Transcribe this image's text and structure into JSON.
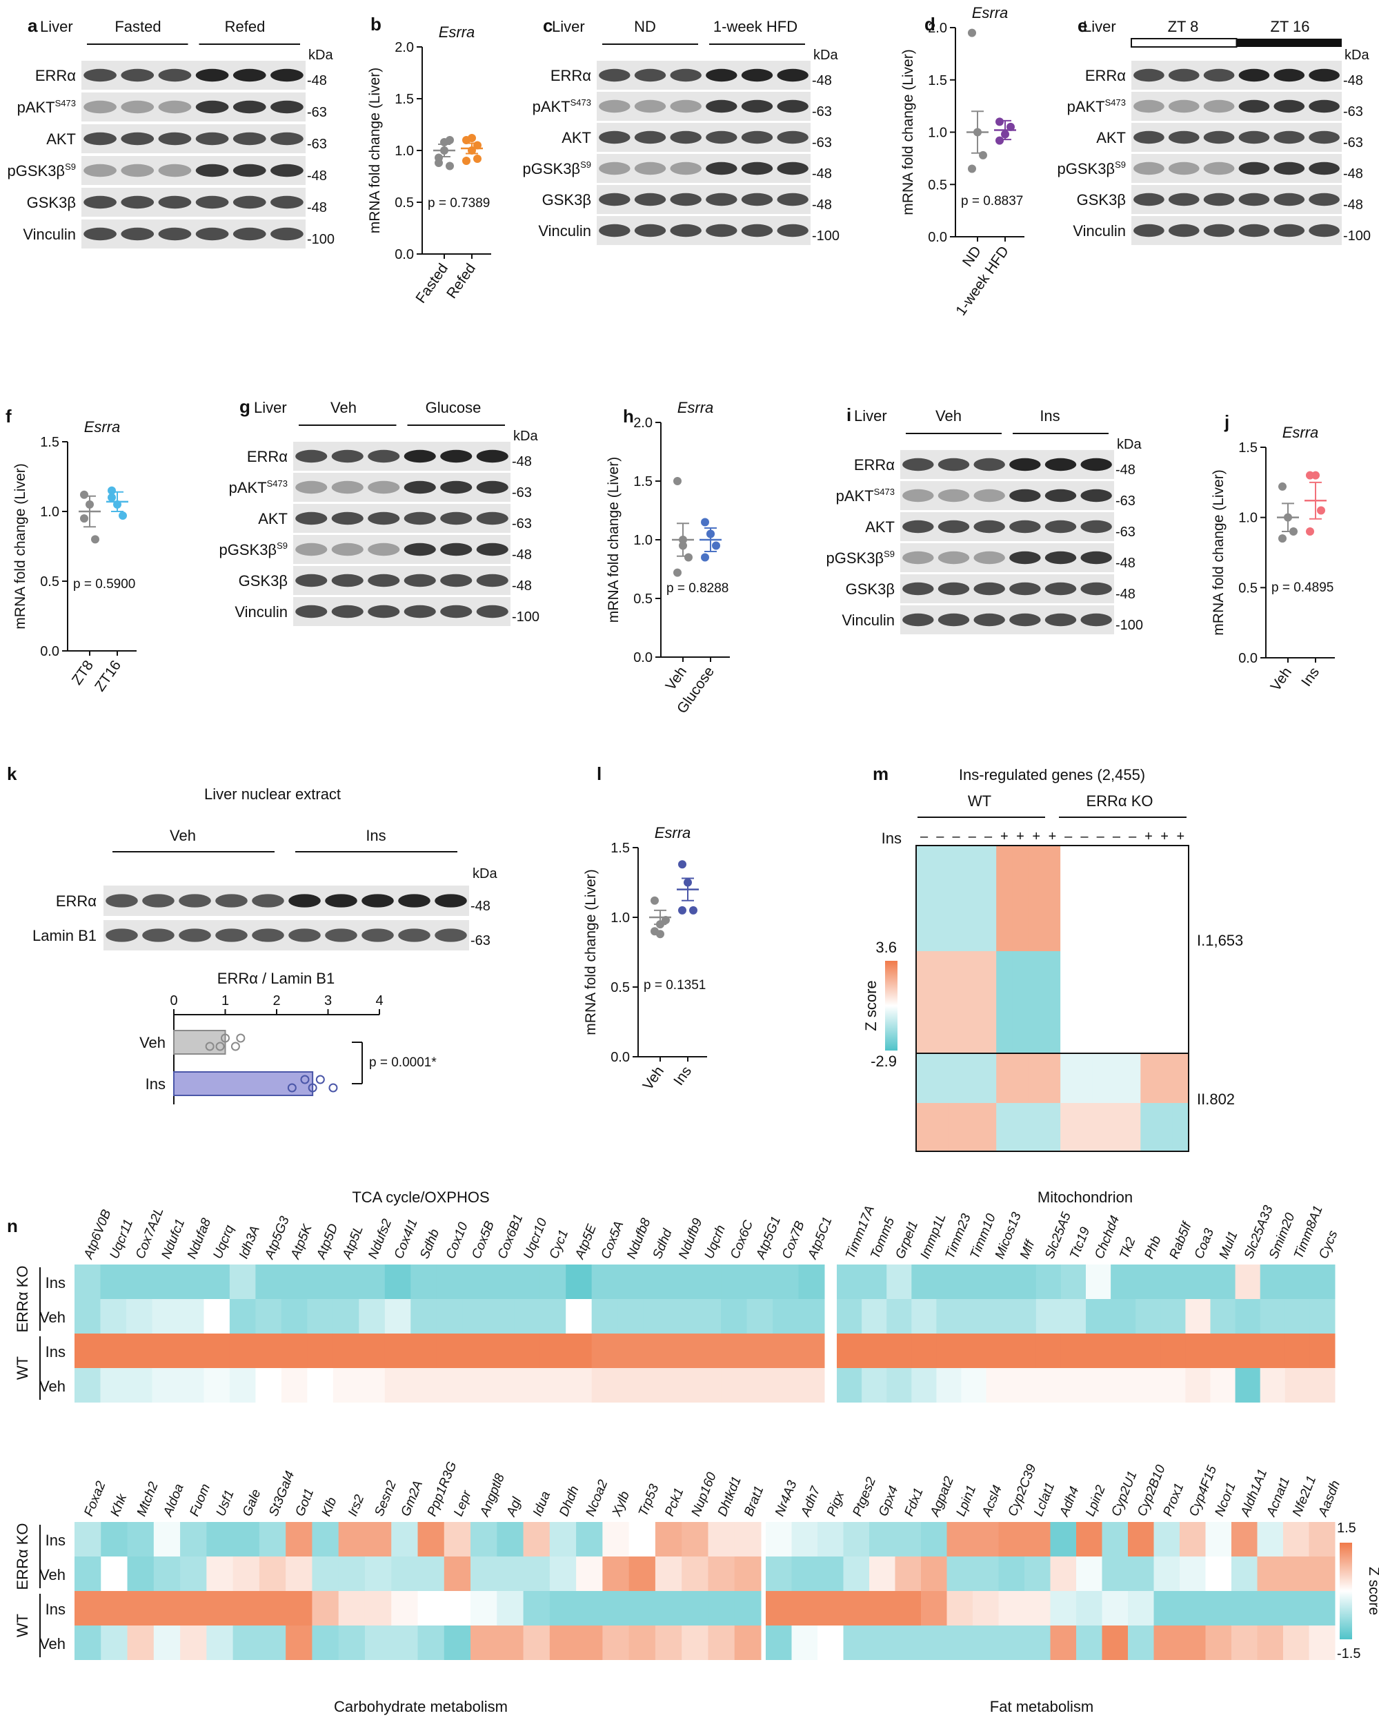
{
  "colors": {
    "orange": "#f08a2c",
    "purple": "#7b3f9e",
    "blue": "#4cb8e8",
    "salmon": "#f2707a",
    "navy": "#4a56a8",
    "grey": "#8a8a8a",
    "heat_pos": "#f07a4a",
    "heat_mid": "#ffffff",
    "heat_neg": "#4fc3c9"
  },
  "panels": {
    "a": {
      "letter": "a",
      "tissue": "Liver",
      "groups": [
        "Fasted",
        "Refed"
      ],
      "bands": [
        "ERRα",
        "pAKT",
        "AKT",
        "pGSK3β",
        "GSK3β",
        "Vinculin"
      ],
      "mw": [
        "-48",
        "-63",
        "-63",
        "-48",
        "-48",
        "-100"
      ],
      "kda": "kDa"
    },
    "c": {
      "letter": "c",
      "tissue": "Liver",
      "groups": [
        "ND",
        "1-week HFD"
      ],
      "bands": [
        "ERRα",
        "pAKT",
        "AKT",
        "pGSK3β",
        "GSK3β",
        "Vinculin"
      ],
      "mw": [
        "-48",
        "-63",
        "-63",
        "-48",
        "-48",
        "-100"
      ],
      "kda": "kDa"
    },
    "e": {
      "letter": "e",
      "tissue": "Liver",
      "groups": [
        "ZT 8",
        "ZT 16"
      ],
      "bands": [
        "ERRα",
        "pAKT",
        "AKT",
        "pGSK3β",
        "GSK3β",
        "Vinculin"
      ],
      "mw": [
        "-48",
        "-63",
        "-63",
        "-48",
        "-48",
        "-100"
      ],
      "kda": "kDa"
    },
    "g": {
      "letter": "g",
      "tissue": "Liver",
      "groups": [
        "Veh",
        "Glucose"
      ],
      "bands": [
        "ERRα",
        "pAKT",
        "AKT",
        "pGSK3β",
        "GSK3β",
        "Vinculin"
      ],
      "mw": [
        "-48",
        "-63",
        "-63",
        "-48",
        "-48",
        "-100"
      ],
      "kda": "kDa"
    },
    "i": {
      "letter": "i",
      "tissue": "Liver",
      "groups": [
        "Veh",
        "Ins"
      ],
      "bands": [
        "ERRα",
        "pAKT",
        "AKT",
        "pGSK3β",
        "GSK3β",
        "Vinculin"
      ],
      "mw": [
        "-48",
        "-63",
        "-63",
        "-48",
        "-48",
        "-100"
      ],
      "kda": "kDa"
    },
    "k": {
      "letter": "k",
      "title": "Liver nuclear extract",
      "groups": [
        "Veh",
        "Ins"
      ],
      "bands": [
        "ERRα",
        "Lamin B1"
      ],
      "mw": [
        "-48",
        "-63"
      ],
      "kda": "kDa",
      "bar_title": "ERRα / Lamin B1",
      "bar_ticks": [
        "0",
        "1",
        "2",
        "3",
        "4"
      ],
      "bar_cats": [
        "Veh",
        "Ins"
      ],
      "p": "p = 0.0001*"
    },
    "m": {
      "letter": "m",
      "title": "Ins-regulated genes (2,455)",
      "groups": [
        "WT",
        "ERRα KO"
      ],
      "ins_label": "Ins",
      "ins_signs": [
        "–",
        "–",
        "–",
        "–",
        "–",
        "+",
        "+",
        "+",
        "+",
        "–",
        "–",
        "–",
        "–",
        "–",
        "+",
        "+",
        "+"
      ],
      "zmax": "3.6",
      "zmin": "-2.9",
      "zlabel": "Z score",
      "cluster1": "I.1,653",
      "cluster2": "II.802"
    },
    "n": {
      "letter": "n",
      "sec1": "TCA cycle/OXPHOS",
      "sec2": "Mitochondrion",
      "sec3": "Carbohydrate metabolism",
      "sec4": "Fat metabolism",
      "rows": [
        "Ins",
        "Veh",
        "Ins",
        "Veh"
      ],
      "groups": [
        "ERRα KO",
        "WT"
      ],
      "scale_max": "1.5",
      "scale_min": "-1.5",
      "scale_label": "Z score"
    }
  },
  "superscripts": {
    "pakt": "S473",
    "pgsk": "S9"
  },
  "chart_data": [
    {
      "panel": "b",
      "type": "scatter",
      "gene": "Esrra",
      "ylabel": "mRNA fold change (Liver)",
      "categories": [
        "Fasted",
        "Refed"
      ],
      "ylim": [
        0,
        2.0
      ],
      "yticks": [
        "0.0",
        "0.5",
        "1.0",
        "1.5",
        "2.0"
      ],
      "series": [
        {
          "values": [
            0.93,
            1.08,
            1.1,
            0.88,
            1.0,
            0.85
          ]
        },
        {
          "values": [
            1.1,
            1.0,
            1.05,
            0.9,
            1.12,
            0.92
          ]
        }
      ],
      "means": [
        1.0,
        1.02
      ],
      "sems": [
        0.06,
        0.05
      ],
      "p": "p = 0.7389",
      "colors": [
        "#8a8a8a",
        "#f08a2c"
      ]
    },
    {
      "panel": "d",
      "type": "scatter",
      "gene": "Esrra",
      "ylabel": "mRNA fold change (Liver)",
      "categories": [
        "ND",
        "1-week HFD"
      ],
      "ylim": [
        0,
        2.0
      ],
      "yticks": [
        "0.0",
        "0.5",
        "1.0",
        "1.5",
        "2.0"
      ],
      "series": [
        {
          "values": [
            1.95,
            1.0,
            0.78,
            0.65
          ]
        },
        {
          "values": [
            1.1,
            0.98,
            1.05,
            0.92
          ]
        }
      ],
      "means": [
        1.0,
        1.02
      ],
      "sems": [
        0.2,
        0.09
      ],
      "p": "p = 0.8837",
      "colors": [
        "#8a8a8a",
        "#7b3f9e"
      ]
    },
    {
      "panel": "f",
      "type": "scatter",
      "gene": "Esrra",
      "ylabel": "mRNA fold change (Liver)",
      "categories": [
        "ZT8",
        "ZT16"
      ],
      "ylim": [
        0,
        1.5
      ],
      "yticks": [
        "0.0",
        "0.5",
        "1.0",
        "1.5"
      ],
      "series": [
        {
          "values": [
            1.12,
            1.05,
            0.8,
            0.95
          ]
        },
        {
          "values": [
            1.15,
            1.05,
            0.97,
            1.1
          ]
        }
      ],
      "means": [
        1.0,
        1.07
      ],
      "sems": [
        0.11,
        0.07
      ],
      "p": "p = 0.5900",
      "colors": [
        "#8a8a8a",
        "#4cb8e8"
      ]
    },
    {
      "panel": "h",
      "type": "scatter",
      "gene": "Esrra",
      "ylabel": "mRNA fold change (Liver)",
      "categories": [
        "Veh",
        "Glucose"
      ],
      "ylim": [
        0,
        2.0
      ],
      "yticks": [
        "0.0",
        "0.5",
        "1.0",
        "1.5",
        "2.0"
      ],
      "series": [
        {
          "values": [
            1.5,
            1.0,
            0.85,
            0.72,
            0.95
          ]
        },
        {
          "values": [
            1.15,
            1.05,
            0.95,
            0.85,
            1.05
          ]
        }
      ],
      "means": [
        1.0,
        1.0
      ],
      "sems": [
        0.14,
        0.1
      ],
      "p": "p = 0.8288",
      "colors": [
        "#8a8a8a",
        "#4a72c4"
      ]
    },
    {
      "panel": "j",
      "type": "scatter",
      "gene": "Esrra",
      "ylabel": "mRNA fold change (Liver)",
      "categories": [
        "Veh",
        "Ins"
      ],
      "ylim": [
        0,
        1.5
      ],
      "yticks": [
        "0.0",
        "0.5",
        "1.0",
        "1.5"
      ],
      "series": [
        {
          "values": [
            1.22,
            1.0,
            0.9,
            0.85
          ]
        },
        {
          "values": [
            1.3,
            1.3,
            1.05,
            0.9
          ]
        }
      ],
      "means": [
        1.0,
        1.12
      ],
      "sems": [
        0.1,
        0.13
      ],
      "p": "p = 0.4895",
      "colors": [
        "#8a8a8a",
        "#f2707a"
      ]
    },
    {
      "panel": "l",
      "type": "scatter",
      "gene": "Esrra",
      "ylabel": "mRNA fold change (Liver)",
      "categories": [
        "Veh",
        "Ins"
      ],
      "ylim": [
        0,
        1.5
      ],
      "yticks": [
        "0.0",
        "0.5",
        "1.0",
        "1.5"
      ],
      "series": [
        {
          "values": [
            1.12,
            0.95,
            0.98,
            0.9,
            0.88
          ]
        },
        {
          "values": [
            1.38,
            1.25,
            1.05,
            1.05
          ]
        }
      ],
      "means": [
        1.0,
        1.2
      ],
      "sems": [
        0.05,
        0.08
      ],
      "p": "p = 0.1351",
      "colors": [
        "#8a8a8a",
        "#4a56a8"
      ]
    },
    {
      "panel": "k",
      "type": "bar",
      "categories": [
        "Veh",
        "Ins"
      ],
      "values": [
        1.0,
        2.7
      ],
      "points": [
        [
          0.7,
          1.0,
          1.2,
          1.3,
          0.9
        ],
        [
          2.3,
          2.55,
          2.7,
          2.85,
          3.1
        ]
      ],
      "xlim": [
        0,
        4
      ]
    }
  ],
  "genes": {
    "tca": [
      "Atp6V0B",
      "Uqcr11",
      "Cox7A2L",
      "Ndufc1",
      "Ndufa8",
      "Uqcrq",
      "Idh3A",
      "Atp5G3",
      "Atp5K",
      "Atp5D",
      "Atp5L",
      "Ndufs2",
      "Cox4I1",
      "Sdhb",
      "Cox10",
      "Cox5B",
      "Cox6B1",
      "Uqcr10",
      "Cyc1",
      "Atp5E",
      "Cox5A",
      "Ndufb8",
      "Sdhd",
      "Ndufb9",
      "Uqcrh",
      "Cox6C",
      "Atp5G1",
      "Cox7B",
      "Atp5C1"
    ],
    "mito": [
      "Timm17A",
      "Tomm5",
      "Grpel1",
      "Immp1L",
      "Timm23",
      "Timm10",
      "Micos13",
      "Mff",
      "Slc25A5",
      "Ttc19",
      "Chchd4",
      "Tk2",
      "Phb",
      "Rab5lf",
      "Coa3",
      "Mul1",
      "Slc25A33",
      "Smim20",
      "Timm8A1",
      "Cycs"
    ],
    "carb": [
      "Foxa2",
      "Khk",
      "Mtch2",
      "Aldoa",
      "Fuom",
      "Usf1",
      "Gale",
      "St3Gal4",
      "Got1",
      "Klb",
      "Irs2",
      "Sesn2",
      "Gm2A",
      "Ppp1R3G",
      "Lepr",
      "Angptl8",
      "Agl",
      "Idua",
      "Dhdh",
      "Ncoa2",
      "Xylb",
      "Trp53",
      "Pck1",
      "Nup160",
      "Dhtkd1",
      "Brat1"
    ],
    "fat": [
      "Nr4A3",
      "Adh7",
      "Pigx",
      "Ptges2",
      "Gpx4",
      "Fdx1",
      "Agpat2",
      "Lpin1",
      "Acsl4",
      "Cyp2C39",
      "Lclat1",
      "Adh4",
      "Lpin2",
      "Cyp2U1",
      "Cyp2B10",
      "Prox1",
      "Cyp4F15",
      "Ncor1",
      "Aldh1A1",
      "Acnat1",
      "Nfe2L1",
      "Aasdh"
    ]
  },
  "heat_values": {
    "tca": [
      [
        -0.8,
        -1.0,
        -1.0,
        -1.0,
        -1.0,
        -1.0,
        -0.6,
        -1.0,
        -1.0,
        -1.0,
        -1.0,
        -1.0,
        -1.2,
        -1.0,
        -1.0,
        -1.0,
        -1.0,
        -1.0,
        -1.0,
        -1.3,
        -1.0,
        -1.0,
        -1.0,
        -1.0,
        -1.0,
        -1.0,
        -1.0,
        -1.0,
        -1.1
      ],
      [
        -0.8,
        -0.5,
        -0.4,
        -0.3,
        -0.3,
        0.0,
        -0.9,
        -0.8,
        -0.9,
        -0.8,
        -0.8,
        -0.5,
        -0.3,
        -0.8,
        -0.8,
        -0.8,
        -0.8,
        -0.8,
        -0.8,
        0.0,
        -0.8,
        -0.8,
        -0.8,
        -0.8,
        -0.8,
        -0.9,
        -0.8,
        -0.9,
        -0.9
      ],
      [
        1.4,
        1.4,
        1.4,
        1.4,
        1.4,
        1.4,
        1.4,
        1.4,
        1.4,
        1.4,
        1.4,
        1.4,
        1.4,
        1.4,
        1.4,
        1.4,
        1.4,
        1.4,
        1.4,
        1.4,
        1.3,
        1.3,
        1.3,
        1.3,
        1.3,
        1.3,
        1.3,
        1.3,
        1.3
      ],
      [
        -0.6,
        -0.3,
        -0.3,
        -0.2,
        -0.2,
        -0.1,
        -0.2,
        0.0,
        0.1,
        0.0,
        0.1,
        0.1,
        0.2,
        0.2,
        0.2,
        0.2,
        0.2,
        0.2,
        0.2,
        0.2,
        0.3,
        0.3,
        0.3,
        0.3,
        0.3,
        0.3,
        0.3,
        0.3,
        0.3
      ]
    ],
    "mito": [
      [
        -0.9,
        -0.9,
        -0.5,
        -1.0,
        -1.0,
        -1.0,
        -1.0,
        -1.0,
        -0.9,
        -0.8,
        -0.1,
        -1.0,
        -1.0,
        -1.0,
        -1.0,
        -1.0,
        0.3,
        -1.0,
        -1.0,
        -1.0
      ],
      [
        -0.8,
        -0.5,
        -0.7,
        -0.5,
        -0.7,
        -0.7,
        -0.7,
        -0.7,
        -0.5,
        -0.5,
        -0.9,
        -0.9,
        -0.8,
        -0.8,
        0.2,
        -0.8,
        -0.9,
        -0.8,
        -0.8,
        -0.8
      ],
      [
        1.4,
        1.4,
        1.4,
        1.4,
        1.4,
        1.4,
        1.4,
        1.4,
        1.4,
        1.4,
        1.4,
        1.4,
        1.4,
        1.4,
        1.4,
        1.4,
        1.4,
        1.4,
        1.4,
        1.4
      ],
      [
        -0.8,
        -0.5,
        -0.6,
        -0.4,
        -0.2,
        -0.1,
        0.1,
        0.1,
        0.1,
        0.1,
        0.1,
        0.1,
        0.1,
        0.1,
        0.2,
        0.1,
        -1.2,
        0.2,
        0.3,
        0.3
      ]
    ],
    "carb": [
      [
        -0.6,
        -1.0,
        -0.9,
        -0.1,
        -0.8,
        -1.0,
        -1.0,
        -0.8,
        1.1,
        -0.9,
        1.0,
        1.0,
        -0.5,
        1.2,
        0.5,
        -0.8,
        -1.0,
        0.6,
        -0.5,
        -0.9,
        0.1,
        0.0,
        0.9,
        0.8,
        0.3,
        0.3
      ],
      [
        -0.9,
        0.0,
        -1.0,
        -0.8,
        -0.7,
        0.2,
        0.3,
        0.5,
        0.3,
        -0.6,
        -0.6,
        -0.5,
        -0.6,
        -0.6,
        1.0,
        -0.6,
        -0.6,
        -0.6,
        -0.4,
        0.1,
        1.0,
        1.2,
        0.3,
        0.5,
        0.7,
        0.8
      ],
      [
        1.3,
        1.3,
        1.3,
        1.3,
        1.3,
        1.3,
        1.3,
        1.3,
        1.3,
        0.7,
        0.3,
        0.3,
        0.1,
        0.0,
        0.0,
        -0.1,
        -0.3,
        -0.9,
        -1.0,
        -1.0,
        -1.0,
        -1.0,
        -1.0,
        -1.0,
        -1.0,
        -1.0
      ],
      [
        -0.9,
        -0.5,
        0.5,
        -0.2,
        0.3,
        -0.4,
        -0.8,
        -0.8,
        1.2,
        -0.9,
        -0.8,
        -0.6,
        -0.6,
        -0.8,
        -1.1,
        0.9,
        0.9,
        0.6,
        1.0,
        1.0,
        0.7,
        0.8,
        0.6,
        0.4,
        0.6,
        0.9
      ]
    ],
    "fat": [
      [
        -0.1,
        -0.3,
        -0.4,
        -0.6,
        -0.8,
        -0.8,
        -0.9,
        1.1,
        1.1,
        1.2,
        1.2,
        -1.2,
        1.3,
        -0.8,
        1.3,
        -0.5,
        0.6,
        -0.1,
        1.1,
        -0.3,
        0.4,
        0.6
      ],
      [
        -0.8,
        -0.9,
        -0.9,
        -0.5,
        0.2,
        0.7,
        0.9,
        -0.8,
        -0.8,
        -0.9,
        -0.8,
        0.3,
        -0.1,
        -0.8,
        -0.8,
        -0.3,
        -0.2,
        0.0,
        -0.5,
        0.8,
        0.8,
        0.8
      ],
      [
        1.3,
        1.3,
        1.3,
        1.3,
        1.3,
        1.3,
        1.1,
        0.4,
        0.3,
        0.2,
        0.2,
        -0.3,
        -0.4,
        -0.2,
        -0.3,
        -1.0,
        -1.0,
        -1.0,
        -1.0,
        -1.0,
        -1.0,
        -1.0
      ],
      [
        -1.0,
        -0.1,
        0.0,
        -0.8,
        -0.8,
        -0.8,
        -0.8,
        -0.8,
        -0.8,
        -0.8,
        -0.8,
        1.1,
        -0.8,
        1.3,
        -0.8,
        1.1,
        1.1,
        0.8,
        0.6,
        0.7,
        0.4,
        0.2
      ]
    ]
  }
}
